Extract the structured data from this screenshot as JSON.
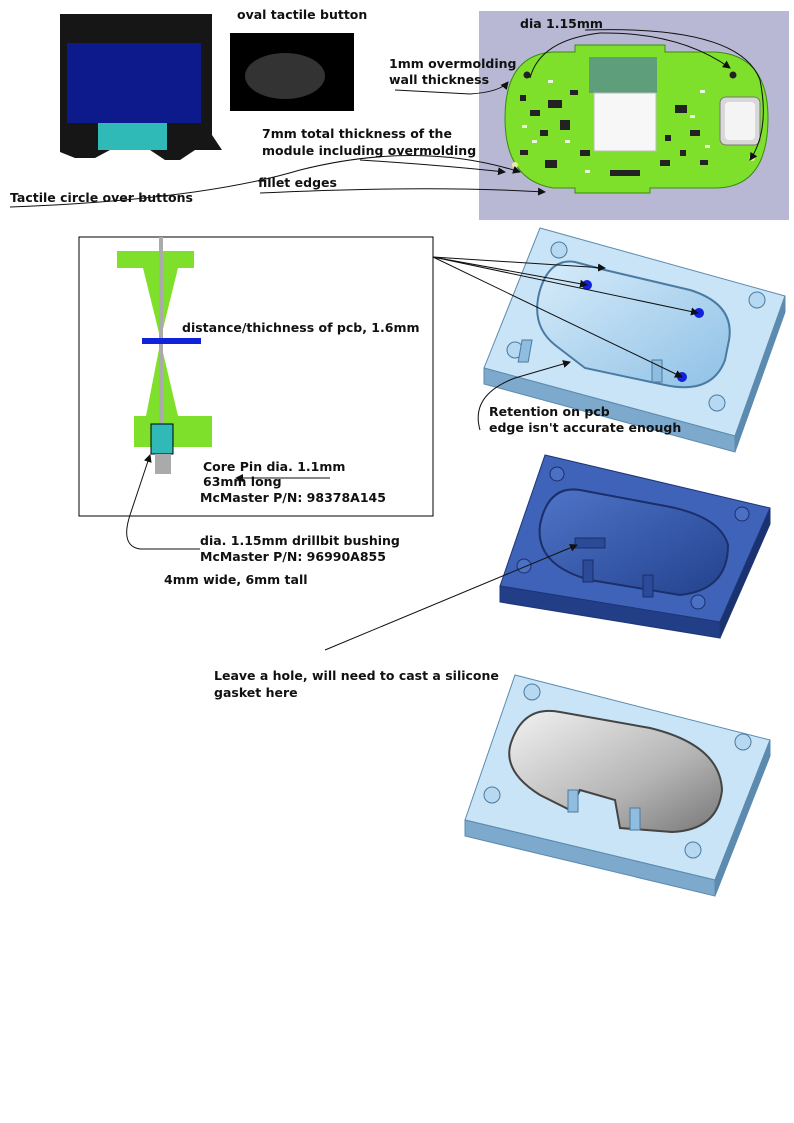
{
  "annotations": {
    "oval_tactile_button": "oval tactile button",
    "dia_top": "dia 1.15mm",
    "wall_thickness_line1": "1mm overmolding",
    "wall_thickness_line2": "wall thickness",
    "total_thickness_line1": "7mm total thickness of the",
    "total_thickness_line2": "module including overmolding",
    "fillet_edges": "fillet edges",
    "tactile_circle": "Tactile circle over buttons",
    "pcb_distance": "distance/thichness of pcb, 1.6mm",
    "retention_line1": "Retention on pcb",
    "retention_line2": "edge isn't accurate enough",
    "core_pin_line1": "Core Pin dia. 1.1mm",
    "core_pin_line2": "63mm long",
    "core_pin_line3": "McMaster P/N: 98378A145",
    "bushing_line1": "dia. 1.15mm drillbit bushing",
    "bushing_line2": "McMaster P/N: 96990A855",
    "size_note": "4mm wide, 6mm tall",
    "hole_line1": "Leave a hole, will need to cast a silicone",
    "hole_line2": "gasket here"
  },
  "colors": {
    "pcb_green": "#7ee02a",
    "screen_blue": "#0c1a8c",
    "screen_teal": "#2fbab8",
    "mold_light": "#a9d2ee",
    "mold_dark": "#2d52a8",
    "pin_grey": "#aaaaaa",
    "marker_blue": "#1122dd",
    "cad_bg": "#b8b8d4"
  }
}
